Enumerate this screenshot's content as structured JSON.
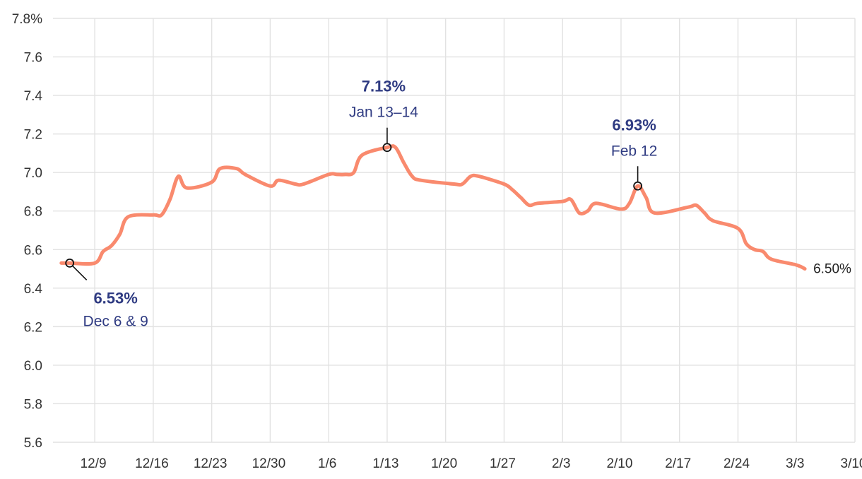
{
  "chart_data": {
    "type": "line",
    "title": "",
    "xlabel": "",
    "ylabel": "",
    "y_unit_suffix": "%",
    "ylim": [
      5.6,
      7.8
    ],
    "y_ticks": [
      5.6,
      5.8,
      6.0,
      6.2,
      6.4,
      6.6,
      6.8,
      7.0,
      7.2,
      7.4,
      7.6,
      7.8
    ],
    "y_tick_labels": [
      "5.6",
      "5.8",
      "6.0",
      "6.2",
      "6.4",
      "6.6",
      "6.8",
      "7.0",
      "7.2",
      "7.4",
      "7.6",
      "7.8%"
    ],
    "x_range": [
      "2024-12-04",
      "2025-03-10"
    ],
    "x_ticks": [
      "2024-12-09",
      "2024-12-16",
      "2024-12-23",
      "2024-12-30",
      "2025-01-06",
      "2025-01-13",
      "2025-01-20",
      "2025-01-27",
      "2025-02-03",
      "2025-02-10",
      "2025-02-17",
      "2025-02-24",
      "2025-03-03",
      "2025-03-10"
    ],
    "x_tick_labels": [
      "12/9",
      "12/16",
      "12/23",
      "12/30",
      "1/6",
      "1/13",
      "1/20",
      "1/27",
      "2/3",
      "2/10",
      "2/17",
      "2/24",
      "3/3",
      "3/10"
    ],
    "grid": true,
    "legend": "none",
    "series": [
      {
        "color": "#f98a6e",
        "points": [
          [
            "2024-12-05",
            6.53
          ],
          [
            "2024-12-06",
            6.53
          ],
          [
            "2024-12-09",
            6.53
          ],
          [
            "2024-12-10",
            6.59
          ],
          [
            "2024-12-11",
            6.62
          ],
          [
            "2024-12-12",
            6.68
          ],
          [
            "2024-12-13",
            6.77
          ],
          [
            "2024-12-16",
            6.78
          ],
          [
            "2024-12-17",
            6.78
          ],
          [
            "2024-12-18",
            6.86
          ],
          [
            "2024-12-19",
            6.98
          ],
          [
            "2024-12-20",
            6.92
          ],
          [
            "2024-12-23",
            6.95
          ],
          [
            "2024-12-24",
            7.02
          ],
          [
            "2024-12-26",
            7.02
          ],
          [
            "2024-12-27",
            6.99
          ],
          [
            "2024-12-30",
            6.93
          ],
          [
            "2024-12-31",
            6.96
          ],
          [
            "2025-01-02",
            6.94
          ],
          [
            "2025-01-03",
            6.94
          ],
          [
            "2025-01-06",
            6.99
          ],
          [
            "2025-01-07",
            6.99
          ],
          [
            "2025-01-08",
            6.99
          ],
          [
            "2025-01-09",
            7.0
          ],
          [
            "2025-01-10",
            7.09
          ],
          [
            "2025-01-13",
            7.13
          ],
          [
            "2025-01-14",
            7.13
          ],
          [
            "2025-01-15",
            7.05
          ],
          [
            "2025-01-16",
            6.98
          ],
          [
            "2025-01-17",
            6.96
          ],
          [
            "2025-01-21",
            6.94
          ],
          [
            "2025-01-22",
            6.94
          ],
          [
            "2025-01-23",
            6.98
          ],
          [
            "2025-01-24",
            6.98
          ],
          [
            "2025-01-27",
            6.94
          ],
          [
            "2025-01-28",
            6.91
          ],
          [
            "2025-01-29",
            6.87
          ],
          [
            "2025-01-30",
            6.83
          ],
          [
            "2025-01-31",
            6.84
          ],
          [
            "2025-02-03",
            6.85
          ],
          [
            "2025-02-04",
            6.86
          ],
          [
            "2025-02-05",
            6.79
          ],
          [
            "2025-02-06",
            6.8
          ],
          [
            "2025-02-07",
            6.84
          ],
          [
            "2025-02-10",
            6.81
          ],
          [
            "2025-02-11",
            6.84
          ],
          [
            "2025-02-12",
            6.93
          ],
          [
            "2025-02-13",
            6.87
          ],
          [
            "2025-02-14",
            6.79
          ],
          [
            "2025-02-18",
            6.82
          ],
          [
            "2025-02-19",
            6.83
          ],
          [
            "2025-02-20",
            6.79
          ],
          [
            "2025-02-21",
            6.75
          ],
          [
            "2025-02-24",
            6.71
          ],
          [
            "2025-02-25",
            6.63
          ],
          [
            "2025-02-26",
            6.6
          ],
          [
            "2025-02-27",
            6.59
          ],
          [
            "2025-02-28",
            6.55
          ],
          [
            "2025-03-03",
            6.52
          ],
          [
            "2025-03-04",
            6.5
          ]
        ]
      }
    ],
    "annotations": [
      {
        "date": "2024-12-06",
        "value": 6.53,
        "label_value": "6.53%",
        "label_date": "Dec 6 & 9",
        "position": "below-right"
      },
      {
        "date": "2025-01-13",
        "value": 7.13,
        "label_value": "7.13%",
        "label_date": "Jan 13–14",
        "position": "above"
      },
      {
        "date": "2025-02-12",
        "value": 6.93,
        "label_value": "6.93%",
        "label_date": "Feb 12",
        "position": "above"
      }
    ],
    "end_label": "6.50%"
  }
}
